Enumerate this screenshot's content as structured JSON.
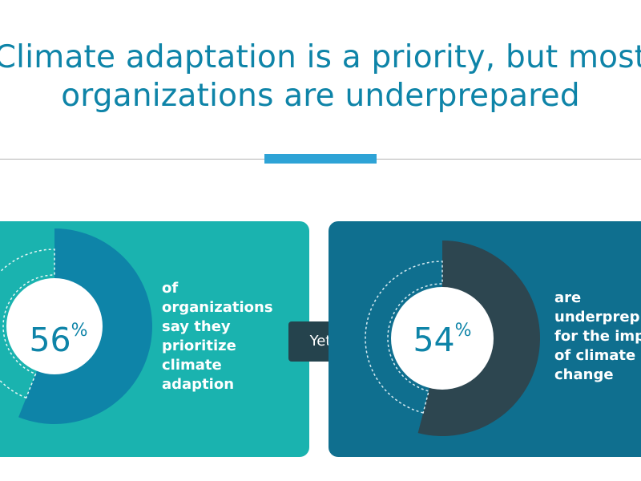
{
  "header": {
    "title_line1": "Climate adaptation is a priority, but most",
    "title_line2": "organizations are underprepared"
  },
  "connector": {
    "label": "Yet"
  },
  "stats": [
    {
      "value": "56",
      "unit": "%",
      "description": "of\norganizations\nsay they\nprioritize\nclimate\nadaption"
    },
    {
      "value": "54",
      "unit": "%",
      "description": "are\nunderprep\nfor the imp\nof climate\nchange"
    }
  ],
  "chart_data": {
    "type": "pie",
    "series": [
      {
        "values": [
          56,
          44
        ]
      },
      {
        "values": [
          54,
          46
        ]
      }
    ]
  },
  "colors": {
    "title": "#0e84a8",
    "accent_bar": "#2ea3d6",
    "left_panel": "#1ab3af",
    "left_segment": "#0e84a8",
    "right_panel": "#0f6f8f",
    "right_segment": "#2d4650",
    "yet_badge": "#25434d",
    "percent_text": "#0e84a8"
  }
}
